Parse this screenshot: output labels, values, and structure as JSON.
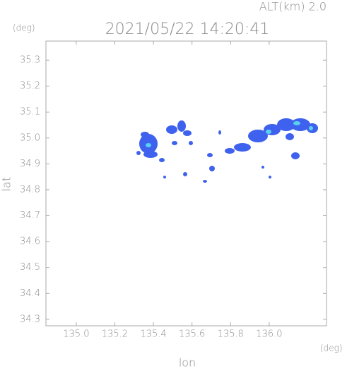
{
  "chart_data": {
    "type": "map",
    "title": "2021/05/22 14:20:41",
    "subtitle": "ALT(km) 2.0",
    "x_label": "lon",
    "y_label": "lat",
    "x_unit": "(deg)",
    "y_unit": "(deg)",
    "xlim": [
      134.843,
      136.297
    ],
    "ylim": [
      34.275,
      35.374
    ],
    "xticks": [
      {
        "value": 135,
        "label": "135.0"
      },
      135.2,
      135.4,
      135.6,
      135.8,
      {
        "value": 136,
        "label": "136.0"
      }
    ],
    "yticks": [
      34.3,
      34.4,
      34.5,
      34.6,
      34.7,
      34.8,
      34.9,
      {
        "value": 35,
        "label": "35.0"
      },
      35.1,
      35.2,
      35.3
    ],
    "color": "#3f62ee"
  }
}
